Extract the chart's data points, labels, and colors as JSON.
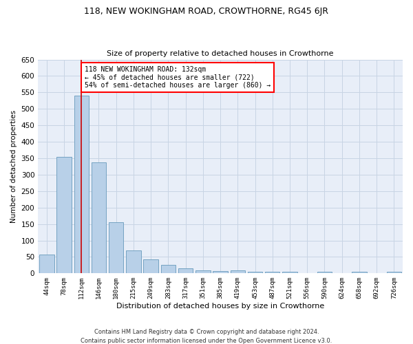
{
  "title": "118, NEW WOKINGHAM ROAD, CROWTHORNE, RG45 6JR",
  "subtitle": "Size of property relative to detached houses in Crowthorne",
  "xlabel": "Distribution of detached houses by size in Crowthorne",
  "ylabel": "Number of detached properties",
  "bar_color": "#b8d0e8",
  "bar_edge_color": "#6699bb",
  "bar_values": [
    57,
    355,
    540,
    338,
    155,
    70,
    42,
    25,
    15,
    10,
    8,
    10,
    5,
    5,
    5,
    0,
    5,
    0,
    5,
    0,
    5
  ],
  "categories": [
    "44sqm",
    "78sqm",
    "112sqm",
    "146sqm",
    "180sqm",
    "215sqm",
    "249sqm",
    "283sqm",
    "317sqm",
    "351sqm",
    "385sqm",
    "419sqm",
    "453sqm",
    "487sqm",
    "521sqm",
    "556sqm",
    "590sqm",
    "624sqm",
    "658sqm",
    "692sqm",
    "726sqm"
  ],
  "ylim": [
    0,
    650
  ],
  "yticks": [
    0,
    50,
    100,
    150,
    200,
    250,
    300,
    350,
    400,
    450,
    500,
    550,
    600,
    650
  ],
  "vline_x": 2,
  "annotation_text": "118 NEW WOKINGHAM ROAD: 132sqm\n← 45% of detached houses are smaller (722)\n54% of semi-detached houses are larger (860) →",
  "annotation_box_color": "white",
  "annotation_box_edge_color": "red",
  "vline_color": "#cc0000",
  "grid_color": "#c8d4e4",
  "bg_color": "#e8eef8",
  "footer_line1": "Contains HM Land Registry data © Crown copyright and database right 2024.",
  "footer_line2": "Contains public sector information licensed under the Open Government Licence v3.0."
}
